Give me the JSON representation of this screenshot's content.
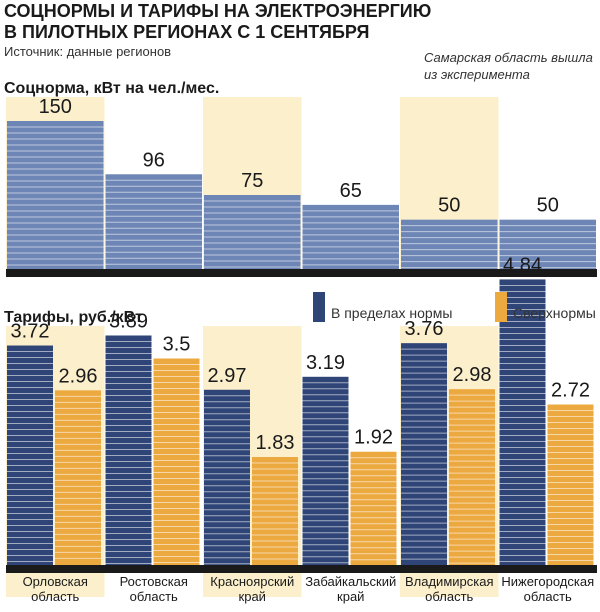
{
  "header": {
    "title_line1": "СОЦНОРМЫ И ТАРИФЫ НА ЭЛЕКТРОЭНЕРГИЮ",
    "title_line2": "В ПИЛОТНЫХ РЕГИОНАХ С 1 СЕНТЯБРЯ",
    "source": "Источник: данные регионов"
  },
  "note": {
    "line1": "Самарская область вышла",
    "line2": "из эксперимента"
  },
  "colors": {
    "highlight": "#fbefcc",
    "norm_bar": "#6e86b6",
    "within_norm": "#2f4577",
    "above_norm": "#eca93f",
    "baseline": "#1a1a1a"
  },
  "chart_data": [
    {
      "type": "bar",
      "title": "Соцнорма, кВт на чел./мес.",
      "categories": [
        "Орловская область",
        "Ростовская область",
        "Красноярский край",
        "Забайкальский край",
        "Владимирская область",
        "Нижегородская область"
      ],
      "values": [
        150,
        96,
        75,
        65,
        50,
        50
      ],
      "value_labels": [
        "150",
        "96",
        "75",
        "65",
        "50",
        "50"
      ],
      "highlighted": [
        true,
        false,
        true,
        false,
        true,
        false
      ],
      "ylim": [
        0,
        150
      ]
    },
    {
      "type": "bar",
      "title": "Тарифы, руб./кВт",
      "categories": [
        "Орловская область",
        "Ростовская область",
        "Красноярский край",
        "Забайкальский край",
        "Владимирская область",
        "Нижегородская область"
      ],
      "category_lines": [
        [
          "Орловская",
          "область"
        ],
        [
          "Ростовская",
          "область"
        ],
        [
          "Красноярский",
          "край"
        ],
        [
          "Забайкальский",
          "край"
        ],
        [
          "Владимирская",
          "область"
        ],
        [
          "Нижегородская",
          "область"
        ]
      ],
      "highlighted": [
        true,
        false,
        true,
        false,
        true,
        false
      ],
      "series": [
        {
          "name": "В пределах нормы",
          "values": [
            3.72,
            3.89,
            2.97,
            3.19,
            3.76,
            4.84
          ],
          "labels": [
            "3.72",
            "3.89",
            "2.97",
            "3.19",
            "3.76",
            "4.84"
          ]
        },
        {
          "name": "Сверхнормы",
          "values": [
            2.96,
            3.5,
            1.83,
            1.92,
            2.98,
            2.72
          ],
          "labels": [
            "2.96",
            "3.5",
            "1.83",
            "1.92",
            "2.98",
            "2.72"
          ]
        }
      ],
      "legend_position": "top-right"
    }
  ]
}
